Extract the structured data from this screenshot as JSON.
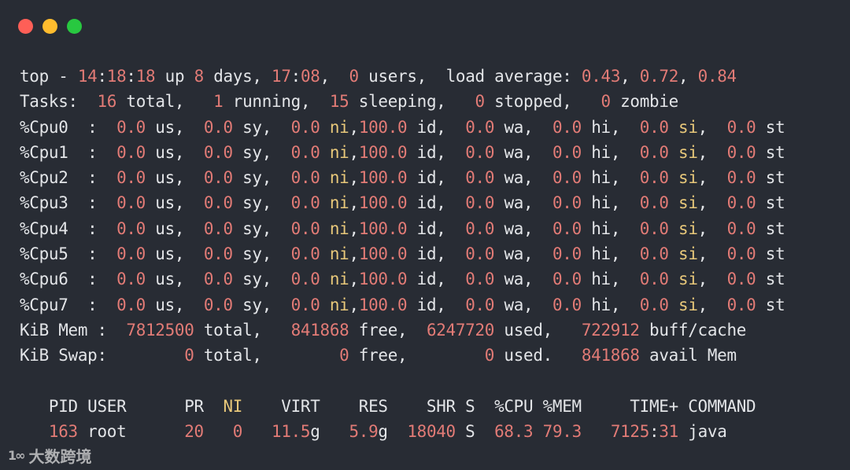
{
  "window": {
    "controls": [
      {
        "name": "close",
        "color": "#fe5f57"
      },
      {
        "name": "minimize",
        "color": "#febc2e"
      },
      {
        "name": "maximize",
        "color": "#28c840"
      }
    ]
  },
  "colors": {
    "background": "#282c34",
    "text": "#e3e5e8",
    "number": "#e27b76",
    "highlight": "#e8c87a"
  },
  "terminal": {
    "lines": [
      [
        [
          "top - ",
          "n"
        ],
        [
          "14",
          "r"
        ],
        [
          ":",
          "n"
        ],
        [
          "18",
          "r"
        ],
        [
          ":",
          "n"
        ],
        [
          "18",
          "r"
        ],
        [
          " up ",
          "n"
        ],
        [
          "8",
          "r"
        ],
        [
          " days, ",
          "n"
        ],
        [
          "17",
          "r"
        ],
        [
          ":",
          "n"
        ],
        [
          "08",
          "r"
        ],
        [
          ",  ",
          "n"
        ],
        [
          "0",
          "r"
        ],
        [
          " users,  load average: ",
          "n"
        ],
        [
          "0.43",
          "r"
        ],
        [
          ", ",
          "n"
        ],
        [
          "0.72",
          "r"
        ],
        [
          ", ",
          "n"
        ],
        [
          "0.84",
          "r"
        ]
      ],
      [
        [
          "Tasks:  ",
          "n"
        ],
        [
          "16",
          "r"
        ],
        [
          " total,   ",
          "n"
        ],
        [
          "1",
          "r"
        ],
        [
          " running,  ",
          "n"
        ],
        [
          "15",
          "r"
        ],
        [
          " sleeping,   ",
          "n"
        ],
        [
          "0",
          "r"
        ],
        [
          " stopped,   ",
          "n"
        ],
        [
          "0",
          "r"
        ],
        [
          " zombie",
          "n"
        ]
      ],
      [
        [
          "%Cpu0  : ",
          "n"
        ],
        [
          " 0.0",
          "r"
        ],
        [
          " us, ",
          "n"
        ],
        [
          " 0.0",
          "r"
        ],
        [
          " sy, ",
          "n"
        ],
        [
          " 0.0",
          "r"
        ],
        [
          " ",
          "n"
        ],
        [
          "ni",
          "y"
        ],
        [
          ",",
          "n"
        ],
        [
          "100.0",
          "r"
        ],
        [
          " id, ",
          "n"
        ],
        [
          " 0.0",
          "r"
        ],
        [
          " wa, ",
          "n"
        ],
        [
          " 0.0",
          "r"
        ],
        [
          " hi, ",
          "n"
        ],
        [
          " 0.0",
          "r"
        ],
        [
          " ",
          "n"
        ],
        [
          "si",
          "y"
        ],
        [
          ", ",
          "n"
        ],
        [
          " 0.0",
          "r"
        ],
        [
          " st",
          "n"
        ]
      ],
      [
        [
          "%Cpu1  : ",
          "n"
        ],
        [
          " 0.0",
          "r"
        ],
        [
          " us, ",
          "n"
        ],
        [
          " 0.0",
          "r"
        ],
        [
          " sy, ",
          "n"
        ],
        [
          " 0.0",
          "r"
        ],
        [
          " ",
          "n"
        ],
        [
          "ni",
          "y"
        ],
        [
          ",",
          "n"
        ],
        [
          "100.0",
          "r"
        ],
        [
          " id, ",
          "n"
        ],
        [
          " 0.0",
          "r"
        ],
        [
          " wa, ",
          "n"
        ],
        [
          " 0.0",
          "r"
        ],
        [
          " hi, ",
          "n"
        ],
        [
          " 0.0",
          "r"
        ],
        [
          " ",
          "n"
        ],
        [
          "si",
          "y"
        ],
        [
          ", ",
          "n"
        ],
        [
          " 0.0",
          "r"
        ],
        [
          " st",
          "n"
        ]
      ],
      [
        [
          "%Cpu2  : ",
          "n"
        ],
        [
          " 0.0",
          "r"
        ],
        [
          " us, ",
          "n"
        ],
        [
          " 0.0",
          "r"
        ],
        [
          " sy, ",
          "n"
        ],
        [
          " 0.0",
          "r"
        ],
        [
          " ",
          "n"
        ],
        [
          "ni",
          "y"
        ],
        [
          ",",
          "n"
        ],
        [
          "100.0",
          "r"
        ],
        [
          " id, ",
          "n"
        ],
        [
          " 0.0",
          "r"
        ],
        [
          " wa, ",
          "n"
        ],
        [
          " 0.0",
          "r"
        ],
        [
          " hi, ",
          "n"
        ],
        [
          " 0.0",
          "r"
        ],
        [
          " ",
          "n"
        ],
        [
          "si",
          "y"
        ],
        [
          ", ",
          "n"
        ],
        [
          " 0.0",
          "r"
        ],
        [
          " st",
          "n"
        ]
      ],
      [
        [
          "%Cpu3  : ",
          "n"
        ],
        [
          " 0.0",
          "r"
        ],
        [
          " us, ",
          "n"
        ],
        [
          " 0.0",
          "r"
        ],
        [
          " sy, ",
          "n"
        ],
        [
          " 0.0",
          "r"
        ],
        [
          " ",
          "n"
        ],
        [
          "ni",
          "y"
        ],
        [
          ",",
          "n"
        ],
        [
          "100.0",
          "r"
        ],
        [
          " id, ",
          "n"
        ],
        [
          " 0.0",
          "r"
        ],
        [
          " wa, ",
          "n"
        ],
        [
          " 0.0",
          "r"
        ],
        [
          " hi, ",
          "n"
        ],
        [
          " 0.0",
          "r"
        ],
        [
          " ",
          "n"
        ],
        [
          "si",
          "y"
        ],
        [
          ", ",
          "n"
        ],
        [
          " 0.0",
          "r"
        ],
        [
          " st",
          "n"
        ]
      ],
      [
        [
          "%Cpu4  : ",
          "n"
        ],
        [
          " 0.0",
          "r"
        ],
        [
          " us, ",
          "n"
        ],
        [
          " 0.0",
          "r"
        ],
        [
          " sy, ",
          "n"
        ],
        [
          " 0.0",
          "r"
        ],
        [
          " ",
          "n"
        ],
        [
          "ni",
          "y"
        ],
        [
          ",",
          "n"
        ],
        [
          "100.0",
          "r"
        ],
        [
          " id, ",
          "n"
        ],
        [
          " 0.0",
          "r"
        ],
        [
          " wa, ",
          "n"
        ],
        [
          " 0.0",
          "r"
        ],
        [
          " hi, ",
          "n"
        ],
        [
          " 0.0",
          "r"
        ],
        [
          " ",
          "n"
        ],
        [
          "si",
          "y"
        ],
        [
          ", ",
          "n"
        ],
        [
          " 0.0",
          "r"
        ],
        [
          " st",
          "n"
        ]
      ],
      [
        [
          "%Cpu5  : ",
          "n"
        ],
        [
          " 0.0",
          "r"
        ],
        [
          " us, ",
          "n"
        ],
        [
          " 0.0",
          "r"
        ],
        [
          " sy, ",
          "n"
        ],
        [
          " 0.0",
          "r"
        ],
        [
          " ",
          "n"
        ],
        [
          "ni",
          "y"
        ],
        [
          ",",
          "n"
        ],
        [
          "100.0",
          "r"
        ],
        [
          " id, ",
          "n"
        ],
        [
          " 0.0",
          "r"
        ],
        [
          " wa, ",
          "n"
        ],
        [
          " 0.0",
          "r"
        ],
        [
          " hi, ",
          "n"
        ],
        [
          " 0.0",
          "r"
        ],
        [
          " ",
          "n"
        ],
        [
          "si",
          "y"
        ],
        [
          ", ",
          "n"
        ],
        [
          " 0.0",
          "r"
        ],
        [
          " st",
          "n"
        ]
      ],
      [
        [
          "%Cpu6  : ",
          "n"
        ],
        [
          " 0.0",
          "r"
        ],
        [
          " us, ",
          "n"
        ],
        [
          " 0.0",
          "r"
        ],
        [
          " sy, ",
          "n"
        ],
        [
          " 0.0",
          "r"
        ],
        [
          " ",
          "n"
        ],
        [
          "ni",
          "y"
        ],
        [
          ",",
          "n"
        ],
        [
          "100.0",
          "r"
        ],
        [
          " id, ",
          "n"
        ],
        [
          " 0.0",
          "r"
        ],
        [
          " wa, ",
          "n"
        ],
        [
          " 0.0",
          "r"
        ],
        [
          " hi, ",
          "n"
        ],
        [
          " 0.0",
          "r"
        ],
        [
          " ",
          "n"
        ],
        [
          "si",
          "y"
        ],
        [
          ", ",
          "n"
        ],
        [
          " 0.0",
          "r"
        ],
        [
          " st",
          "n"
        ]
      ],
      [
        [
          "%Cpu7  : ",
          "n"
        ],
        [
          " 0.0",
          "r"
        ],
        [
          " us, ",
          "n"
        ],
        [
          " 0.0",
          "r"
        ],
        [
          " sy, ",
          "n"
        ],
        [
          " 0.0",
          "r"
        ],
        [
          " ",
          "n"
        ],
        [
          "ni",
          "y"
        ],
        [
          ",",
          "n"
        ],
        [
          "100.0",
          "r"
        ],
        [
          " id, ",
          "n"
        ],
        [
          " 0.0",
          "r"
        ],
        [
          " wa, ",
          "n"
        ],
        [
          " 0.0",
          "r"
        ],
        [
          " hi, ",
          "n"
        ],
        [
          " 0.0",
          "r"
        ],
        [
          " ",
          "n"
        ],
        [
          "si",
          "y"
        ],
        [
          ", ",
          "n"
        ],
        [
          " 0.0",
          "r"
        ],
        [
          " st",
          "n"
        ]
      ],
      [
        [
          "KiB Mem :  ",
          "n"
        ],
        [
          "7812500",
          "r"
        ],
        [
          " total,   ",
          "n"
        ],
        [
          "841868",
          "r"
        ],
        [
          " free,  ",
          "n"
        ],
        [
          "6247720",
          "r"
        ],
        [
          " used,   ",
          "n"
        ],
        [
          "722912",
          "r"
        ],
        [
          " buff/cache",
          "n"
        ]
      ],
      [
        [
          "KiB Swap:        ",
          "n"
        ],
        [
          "0",
          "r"
        ],
        [
          " total,        ",
          "n"
        ],
        [
          "0",
          "r"
        ],
        [
          " free,        ",
          "n"
        ],
        [
          "0",
          "r"
        ],
        [
          " used.   ",
          "n"
        ],
        [
          "841868",
          "r"
        ],
        [
          " avail Mem",
          "n"
        ]
      ],
      [
        [
          "",
          "n"
        ]
      ],
      [
        [
          "   PID USER      PR  ",
          "n"
        ],
        [
          "NI",
          "y"
        ],
        [
          "    VIRT    RES    SHR S  %CPU %MEM     TIME+ COMMAND",
          "n"
        ]
      ],
      [
        [
          "   ",
          "n"
        ],
        [
          "163",
          "r"
        ],
        [
          " root      ",
          "n"
        ],
        [
          "20",
          "r"
        ],
        [
          "   ",
          "n"
        ],
        [
          "0",
          "r"
        ],
        [
          "   ",
          "n"
        ],
        [
          "11.5",
          "r"
        ],
        [
          "g   ",
          "n"
        ],
        [
          "5.9",
          "r"
        ],
        [
          "g  ",
          "n"
        ],
        [
          "18040",
          "r"
        ],
        [
          " S  ",
          "n"
        ],
        [
          "68.3",
          "r"
        ],
        [
          " ",
          "n"
        ],
        [
          "79.3",
          "r"
        ],
        [
          "   ",
          "n"
        ],
        [
          "7125",
          "r"
        ],
        [
          ":",
          "n"
        ],
        [
          "31",
          "r"
        ],
        [
          " java",
          "n"
        ]
      ]
    ]
  },
  "watermark": {
    "logo": "大数跨境",
    "mark": "1∞"
  }
}
